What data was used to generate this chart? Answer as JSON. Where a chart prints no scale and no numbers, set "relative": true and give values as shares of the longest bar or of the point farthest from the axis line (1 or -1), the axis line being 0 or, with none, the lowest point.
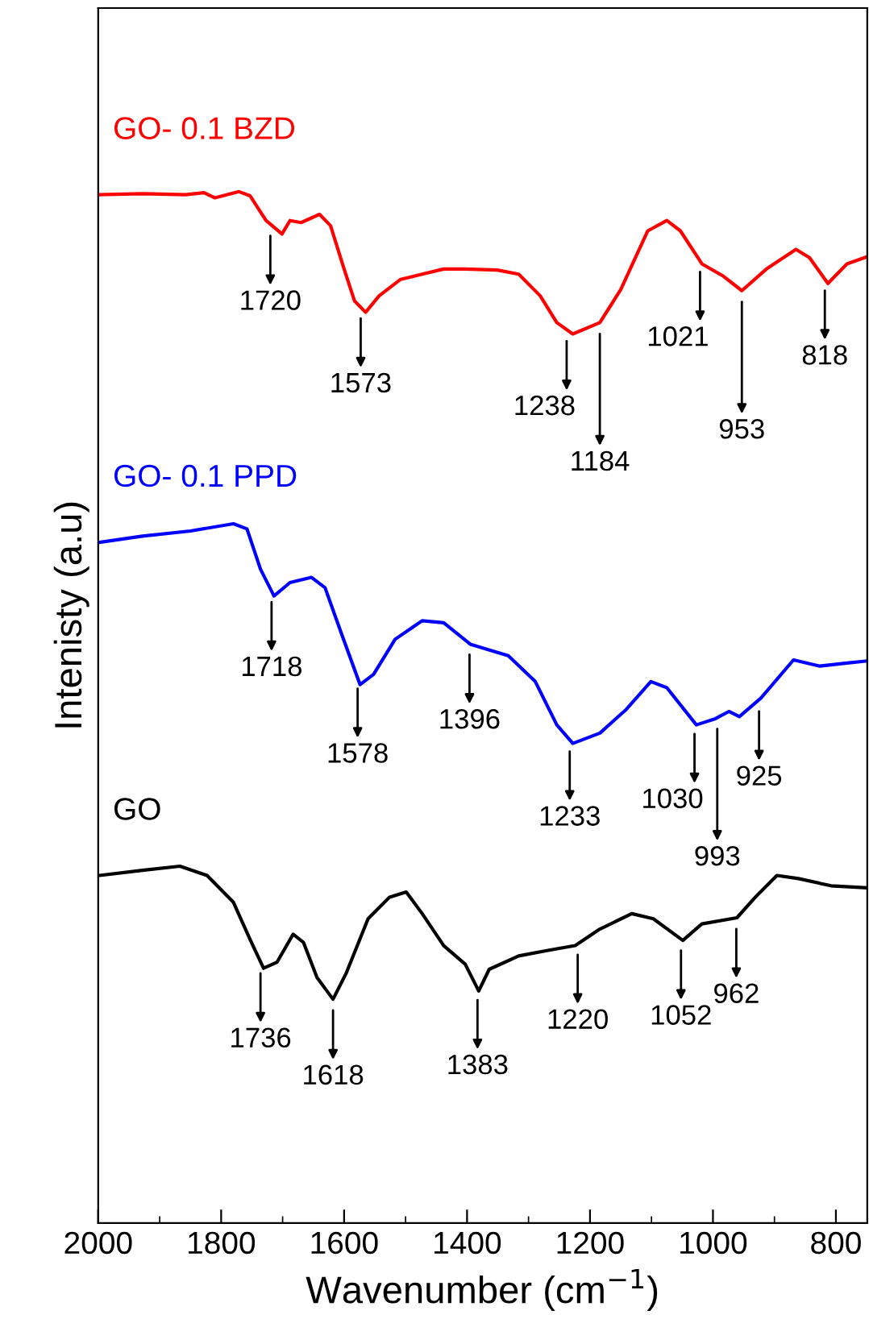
{
  "chart_data": {
    "type": "line",
    "relative": true,
    "xlabel": "Wavenumber (cm$^{−1}$)",
    "ylabel": "Intenisty (a.u)",
    "xlim": [
      2000,
      749
    ],
    "xticks": [
      2000,
      1800,
      1600,
      1400,
      1200,
      1000,
      800
    ],
    "tick_labels": "x",
    "legend": false,
    "grid": false,
    "series": [
      {
        "name": "GO- 0.1 BZD",
        "color": "#ff0000",
        "x": [
          1998,
          1928,
          1858,
          1828,
          1810,
          1771,
          1753,
          1727,
          1701,
          1688,
          1670,
          1640,
          1622,
          1600,
          1583,
          1565,
          1543,
          1508,
          1473,
          1438,
          1403,
          1351,
          1316,
          1281,
          1254,
          1228,
          1184,
          1150,
          1106,
          1075,
          1053,
          1018,
          983,
          953,
          913,
          865,
          843,
          813,
          782,
          749
        ],
        "values": [
          0.997,
          0.998,
          0.997,
          0.999,
          0.994,
          1.0,
          0.996,
          0.972,
          0.959,
          0.972,
          0.97,
          0.978,
          0.967,
          0.925,
          0.894,
          0.883,
          0.899,
          0.915,
          0.92,
          0.925,
          0.925,
          0.924,
          0.92,
          0.899,
          0.873,
          0.862,
          0.873,
          0.905,
          0.962,
          0.972,
          0.962,
          0.93,
          0.918,
          0.904,
          0.925,
          0.944,
          0.936,
          0.911,
          0.93,
          0.937
        ]
      },
      {
        "name": "GO- 0.1 PPD",
        "color": "#0000ff",
        "x": [
          1998,
          1928,
          1850,
          1780,
          1758,
          1736,
          1714,
          1688,
          1653,
          1631,
          1604,
          1574,
          1552,
          1517,
          1473,
          1438,
          1394,
          1333,
          1289,
          1254,
          1228,
          1184,
          1141,
          1101,
          1075,
          1027,
          996,
          974,
          957,
          922,
          869,
          826,
          782,
          749
        ],
        "values": [
          0.66,
          0.666,
          0.671,
          0.678,
          0.673,
          0.634,
          0.608,
          0.621,
          0.626,
          0.616,
          0.571,
          0.522,
          0.532,
          0.566,
          0.584,
          0.582,
          0.561,
          0.55,
          0.525,
          0.483,
          0.465,
          0.475,
          0.498,
          0.525,
          0.519,
          0.483,
          0.489,
          0.496,
          0.491,
          0.509,
          0.546,
          0.54,
          0.543,
          0.545
        ]
      },
      {
        "name": "GO",
        "color": "#000000",
        "x": [
          1998,
          1928,
          1867,
          1823,
          1780,
          1753,
          1731,
          1709,
          1683,
          1666,
          1644,
          1618,
          1596,
          1561,
          1526,
          1499,
          1473,
          1438,
          1403,
          1381,
          1364,
          1316,
          1272,
          1224,
          1184,
          1132,
          1097,
          1049,
          1018,
          961,
          931,
          896,
          861,
          808,
          749
        ],
        "values": [
          0.337,
          0.342,
          0.346,
          0.337,
          0.311,
          0.275,
          0.247,
          0.253,
          0.28,
          0.272,
          0.238,
          0.217,
          0.243,
          0.295,
          0.316,
          0.321,
          0.3,
          0.269,
          0.251,
          0.225,
          0.246,
          0.259,
          0.264,
          0.269,
          0.285,
          0.3,
          0.295,
          0.274,
          0.29,
          0.296,
          0.316,
          0.337,
          0.334,
          0.327,
          0.325
        ]
      }
    ],
    "annotations": [
      {
        "text": "1720",
        "x": 1720,
        "y": 0.968
      },
      {
        "text": "1573",
        "x": 1573,
        "y": 0.888
      },
      {
        "text": "1238",
        "x": 1238,
        "y": 0.866
      },
      {
        "text": "1184",
        "x": 1184,
        "y": 0.873
      },
      {
        "text": "1021",
        "x": 1021,
        "y": 0.933
      },
      {
        "text": "953",
        "x": 953,
        "y": 0.904
      },
      {
        "text": "818",
        "x": 818,
        "y": 0.915
      },
      {
        "text": "1718",
        "x": 1718,
        "y": 0.613
      },
      {
        "text": "1578",
        "x": 1578,
        "y": 0.529
      },
      {
        "text": "1396",
        "x": 1396,
        "y": 0.562
      },
      {
        "text": "1233",
        "x": 1233,
        "y": 0.468
      },
      {
        "text": "1030",
        "x": 1030,
        "y": 0.485
      },
      {
        "text": "993",
        "x": 993,
        "y": 0.49
      },
      {
        "text": "925",
        "x": 925,
        "y": 0.507
      },
      {
        "text": "1736",
        "x": 1736,
        "y": 0.253
      },
      {
        "text": "1618",
        "x": 1618,
        "y": 0.217
      },
      {
        "text": "1383",
        "x": 1383,
        "y": 0.227
      },
      {
        "text": "1220",
        "x": 1220,
        "y": 0.271
      },
      {
        "text": "1052",
        "x": 1052,
        "y": 0.275
      },
      {
        "text": "962",
        "x": 962,
        "y": 0.296
      }
    ]
  }
}
